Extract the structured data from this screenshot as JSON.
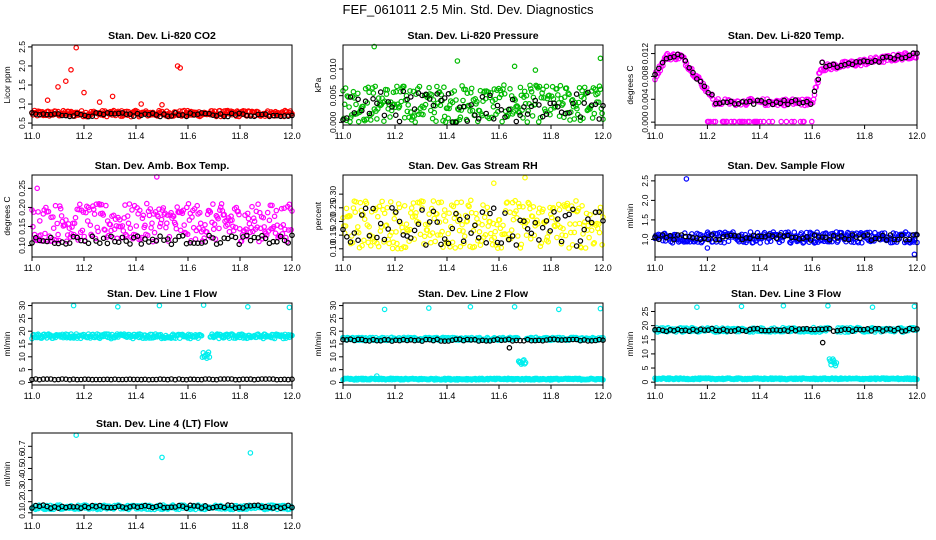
{
  "figure_title": "FEF_061011  2.5 Min. Std. Dev. Diagnostics",
  "colors": {
    "red": "#ff0000",
    "green": "#00bb00",
    "magenta": "#ff00ff",
    "yellow": "#ffff00",
    "blue": "#0000ff",
    "cyan": "#00eeee",
    "black": "#000000"
  },
  "chart_data": [
    {
      "type": "scatter",
      "title": "Stan. Dev. Li-820 CO2",
      "ylabel": "Licor ppm",
      "xlim": [
        11.0,
        12.0
      ],
      "ylim": [
        0.45,
        2.55
      ],
      "xticks": [
        "11.0",
        "11.2",
        "11.4",
        "11.6",
        "11.8",
        "12.0"
      ],
      "yticks": [
        "0.5",
        "1.0",
        "1.5",
        "2.0",
        "2.5"
      ],
      "series": [
        {
          "name": "main",
          "color": "red",
          "base": 0.75,
          "spread": 0.08,
          "outliers": [
            [
              11.06,
              1.1
            ],
            [
              11.1,
              1.45
            ],
            [
              11.13,
              1.6
            ],
            [
              11.15,
              1.9
            ],
            [
              11.17,
              2.48
            ],
            [
              11.2,
              1.3
            ],
            [
              11.26,
              1.05
            ],
            [
              11.31,
              1.2
            ],
            [
              11.56,
              2.0
            ],
            [
              11.57,
              1.95
            ],
            [
              11.42,
              1.0
            ],
            [
              11.5,
              0.98
            ]
          ]
        },
        {
          "name": "black",
          "color": "black",
          "base": 0.72,
          "spread": 0.05,
          "outliers": []
        }
      ]
    },
    {
      "type": "scatter",
      "title": "Stan. Dev. Li-820 Pressure",
      "ylabel": "kPa",
      "xlim": [
        11.0,
        12.0
      ],
      "ylim": [
        -0.0005,
        0.0145
      ],
      "xticks": [
        "11.0",
        "11.2",
        "11.4",
        "11.6",
        "11.8",
        "12.0"
      ],
      "yticks": [
        "0.000",
        "0.005",
        "0.010"
      ],
      "series": [
        {
          "name": "main",
          "color": "green",
          "base": 0.0035,
          "spread": 0.0035,
          "outliers": [
            [
              11.12,
              0.0142
            ],
            [
              11.44,
              0.0115
            ],
            [
              11.99,
              0.012
            ],
            [
              11.66,
              0.0105
            ],
            [
              11.74,
              0.0098
            ]
          ]
        },
        {
          "name": "black",
          "color": "black",
          "base": 0.003,
          "spread": 0.003,
          "outliers": []
        }
      ]
    },
    {
      "type": "scatter",
      "title": "Stan. Dev. Li-820 Temp.",
      "ylabel": "degrees C",
      "xlim": [
        11.0,
        12.0
      ],
      "ylim": [
        -0.0005,
        0.0135
      ],
      "xticks": [
        "11.0",
        "11.2",
        "11.4",
        "11.6",
        "11.8",
        "12.0"
      ],
      "yticks": [
        "0.000",
        "0.004",
        "0.008",
        "0.012"
      ],
      "series": [
        {
          "name": "main",
          "color": "magenta",
          "profile": "temp",
          "spread": 0.0006,
          "outliers": []
        },
        {
          "name": "black",
          "color": "black",
          "profile": "temp",
          "spread": 0.0004,
          "outliers": []
        }
      ]
    },
    {
      "type": "scatter",
      "title": "Stan. Dev. Amb. Box Temp.",
      "ylabel": "degrees C",
      "xlim": [
        11.0,
        12.0
      ],
      "ylim": [
        0.07,
        0.285
      ],
      "xticks": [
        "11.0",
        "11.2",
        "11.4",
        "11.6",
        "11.8",
        "12.0"
      ],
      "yticks": [
        "0.10",
        "0.15",
        "0.20",
        "0.25"
      ],
      "series": [
        {
          "name": "main",
          "color": "magenta",
          "base": 0.16,
          "spread": 0.05,
          "outliers": [
            [
              11.48,
              0.28
            ],
            [
              11.02,
              0.25
            ]
          ]
        },
        {
          "name": "black",
          "color": "black",
          "base": 0.115,
          "spread": 0.012,
          "outliers": []
        }
      ]
    },
    {
      "type": "scatter",
      "title": "Stan. Dev. Gas Stream RH",
      "ylabel": "percent",
      "xlim": [
        11.0,
        12.0
      ],
      "ylim": [
        0.07,
        0.37
      ],
      "xticks": [
        "11.0",
        "11.2",
        "11.4",
        "11.6",
        "11.8",
        "12.0"
      ],
      "yticks": [
        "0.10",
        "0.15",
        "0.20",
        "0.25",
        "0.30"
      ],
      "series": [
        {
          "name": "main",
          "color": "yellow",
          "base": 0.19,
          "spread": 0.09,
          "outliers": [
            [
              11.7,
              0.36
            ],
            [
              11.58,
              0.34
            ]
          ]
        },
        {
          "name": "black",
          "color": "black",
          "base": 0.18,
          "spread": 0.07,
          "outliers": []
        }
      ]
    },
    {
      "type": "scatter",
      "title": "Stan. Dev. Sample Flow",
      "ylabel": "ml/min",
      "xlim": [
        11.0,
        12.0
      ],
      "ylim": [
        0.55,
        2.65
      ],
      "xticks": [
        "11.0",
        "11.2",
        "11.4",
        "11.6",
        "11.8",
        "12.0"
      ],
      "yticks": [
        "1.0",
        "1.5",
        "2.0",
        "2.5"
      ],
      "series": [
        {
          "name": "main",
          "color": "blue",
          "base": 1.05,
          "spread": 0.14,
          "outliers": [
            [
              11.12,
              2.55
            ],
            [
              11.99,
              0.62
            ],
            [
              11.2,
              0.78
            ]
          ]
        },
        {
          "name": "black",
          "color": "black",
          "base": 1.05,
          "spread": 0.07,
          "outliers": []
        }
      ]
    },
    {
      "type": "scatter",
      "title": "Stan. Dev. Line 1 Flow",
      "ylabel": "ml/min",
      "xlim": [
        11.0,
        12.0
      ],
      "ylim": [
        -1,
        31
      ],
      "xticks": [
        "11.0",
        "11.2",
        "11.4",
        "11.6",
        "11.8",
        "12.0"
      ],
      "yticks": [
        "0",
        "5",
        "10",
        "15",
        "20",
        "25",
        "30"
      ],
      "series": [
        {
          "name": "main",
          "color": "cyan",
          "base": 18,
          "spread": 0.9,
          "dip": [
            11.67,
            10.5
          ],
          "outliers": [
            [
              11.16,
              30
            ],
            [
              11.33,
              29.5
            ],
            [
              11.49,
              30
            ],
            [
              11.66,
              30.2
            ],
            [
              11.83,
              29.5
            ],
            [
              11.99,
              29.3
            ]
          ]
        },
        {
          "name": "black",
          "color": "black",
          "base": 1.2,
          "spread": 0.15,
          "outliers": []
        }
      ]
    },
    {
      "type": "scatter",
      "title": "Stan. Dev. Line 2 Flow",
      "ylabel": "ml/min",
      "xlim": [
        11.0,
        12.0
      ],
      "ylim": [
        -1,
        31
      ],
      "xticks": [
        "11.0",
        "11.2",
        "11.4",
        "11.6",
        "11.8",
        "12.0"
      ],
      "yticks": [
        "0",
        "5",
        "10",
        "15",
        "20",
        "25",
        "30"
      ],
      "series": [
        {
          "name": "main",
          "color": "cyan",
          "base": 1.3,
          "spread": 0.3,
          "outliers": [
            [
              11.13,
              2.5
            ]
          ]
        },
        {
          "name": "upper",
          "color": "cyan",
          "base": 17,
          "spread": 0.6,
          "dip": [
            11.69,
            8
          ],
          "outliers": [
            [
              11.16,
              28.5
            ],
            [
              11.33,
              29
            ],
            [
              11.49,
              29.5
            ],
            [
              11.66,
              29.5
            ],
            [
              11.83,
              28.5
            ],
            [
              11.99,
              28.8
            ]
          ]
        },
        {
          "name": "black",
          "color": "black",
          "base": 16.5,
          "spread": 0.4,
          "outliers": [
            [
              11.64,
              13.5
            ]
          ]
        }
      ]
    },
    {
      "type": "scatter",
      "title": "Stan. Dev. Line 3 Flow",
      "ylabel": "ml/min",
      "xlim": [
        11.0,
        12.0
      ],
      "ylim": [
        -1,
        28
      ],
      "xticks": [
        "11.0",
        "11.2",
        "11.4",
        "11.6",
        "11.8",
        "12.0"
      ],
      "yticks": [
        "0",
        "5",
        "10",
        "15",
        "20",
        "25"
      ],
      "series": [
        {
          "name": "main",
          "color": "cyan",
          "base": 1.2,
          "spread": 0.25,
          "outliers": []
        },
        {
          "name": "upper",
          "color": "cyan",
          "base": 18.5,
          "spread": 0.8,
          "dip": [
            11.68,
            7
          ],
          "outliers": [
            [
              11.16,
              26.5
            ],
            [
              11.33,
              26.8
            ],
            [
              11.49,
              27
            ],
            [
              11.66,
              27
            ],
            [
              11.83,
              26.5
            ],
            [
              11.99,
              26.8
            ]
          ]
        },
        {
          "name": "black",
          "color": "black",
          "base": 18.5,
          "spread": 0.5,
          "outliers": [
            [
              11.64,
              14
            ]
          ]
        }
      ]
    },
    {
      "type": "scatter",
      "title": "Stan. Dev. Line 4 (LT) Flow",
      "ylabel": "ml/min",
      "xlim": [
        11.0,
        12.0
      ],
      "ylim": [
        0.08,
        0.82
      ],
      "xticks": [
        "11.0",
        "11.2",
        "11.4",
        "11.6",
        "11.8",
        "12.0"
      ],
      "yticks": [
        "0.1",
        "0.2",
        "0.3",
        "0.4",
        "0.5",
        "0.6",
        "0.7"
      ],
      "series": [
        {
          "name": "main",
          "color": "cyan",
          "base": 0.15,
          "spread": 0.02,
          "outliers": [
            [
              11.17,
              0.8
            ],
            [
              11.5,
              0.6
            ],
            [
              11.84,
              0.64
            ]
          ]
        },
        {
          "name": "black",
          "color": "black",
          "base": 0.155,
          "spread": 0.015,
          "outliers": []
        }
      ]
    }
  ]
}
